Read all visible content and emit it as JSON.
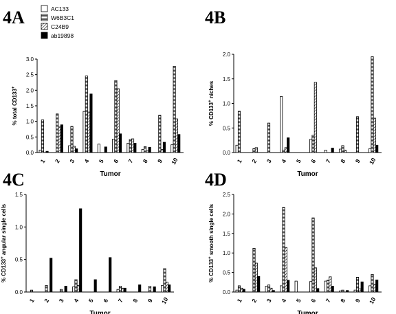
{
  "legend": [
    "AC133",
    "W6B3C1",
    "C24B9",
    "ab19898"
  ],
  "chart_data": [
    {
      "type": "bar",
      "panel": "4A",
      "ylabel": "% total CD133",
      "ylabel_sup": "+",
      "xlabel": "Tumor",
      "ylim": [
        0,
        3.0
      ],
      "ytick_labels": [
        "0.0",
        "0.5",
        "1.0",
        "1.5",
        "2.0",
        "2.5",
        "3.0"
      ],
      "categories": [
        "1",
        "2",
        "3",
        "4",
        "5",
        "6",
        "7",
        "8",
        "9",
        "10"
      ],
      "series": [
        {
          "name": "AC133",
          "values": [
            0.08,
            0.0,
            0.22,
            1.32,
            0.27,
            0.43,
            0.3,
            0.1,
            0.0,
            0.25
          ]
        },
        {
          "name": "W6B3C1",
          "values": [
            1.05,
            1.24,
            0.84,
            2.46,
            0.0,
            2.31,
            0.42,
            0.19,
            1.2,
            2.77
          ]
        },
        {
          "name": "C24B9",
          "values": [
            0.0,
            0.82,
            0.2,
            1.3,
            0.0,
            2.05,
            0.44,
            0.05,
            0.1,
            1.08
          ]
        },
        {
          "name": "ab19898",
          "values": [
            0.04,
            0.89,
            0.12,
            1.88,
            0.18,
            0.6,
            0.3,
            0.17,
            0.33,
            0.58
          ]
        }
      ]
    },
    {
      "type": "bar",
      "panel": "4B",
      "ylabel": "% CD133",
      "ylabel_sup": "+",
      "ylabel_after": " niches",
      "xlabel": "Tumor",
      "ylim": [
        0,
        2.0
      ],
      "ytick_labels": [
        "0.0",
        "0.5",
        "1.0",
        "1.5",
        "2.0"
      ],
      "categories": [
        "1",
        "2",
        "3",
        "4",
        "5",
        "6",
        "7",
        "8",
        "9",
        "10"
      ],
      "series": [
        {
          "name": "AC133",
          "values": [
            0.15,
            0.0,
            0.0,
            1.14,
            0.0,
            0.27,
            0.05,
            0.07,
            0.0,
            0.08
          ]
        },
        {
          "name": "W6B3C1",
          "values": [
            0.84,
            0.08,
            0.6,
            0.05,
            0.0,
            0.35,
            0.0,
            0.14,
            0.73,
            1.95
          ]
        },
        {
          "name": "C24B9",
          "values": [
            0.0,
            0.1,
            0.0,
            0.1,
            0.0,
            1.43,
            0.0,
            0.05,
            0.0,
            0.7
          ]
        },
        {
          "name": "ab19898",
          "values": [
            0.0,
            0.0,
            0.0,
            0.3,
            0.0,
            0.0,
            0.09,
            0.0,
            0.0,
            0.15
          ]
        }
      ]
    },
    {
      "type": "bar",
      "panel": "4C",
      "ylabel": "% CD133",
      "ylabel_sup": "+",
      "ylabel_after": " angular single cells",
      "xlabel": "Tumor",
      "ylim": [
        0,
        1.5
      ],
      "ytick_labels": [
        "0.0",
        "0.5",
        "1.0",
        "1.5"
      ],
      "categories": [
        "1",
        "2",
        "3",
        "4",
        "5",
        "6",
        "7",
        "8",
        "9",
        "10"
      ],
      "series": [
        {
          "name": "AC133",
          "values": [
            0.0,
            0.0,
            0.0,
            0.08,
            0.0,
            0.0,
            0.04,
            0.0,
            0.0,
            0.1
          ]
        },
        {
          "name": "W6B3C1",
          "values": [
            0.03,
            0.1,
            0.04,
            0.19,
            0.0,
            0.0,
            0.09,
            0.0,
            0.09,
            0.36
          ]
        },
        {
          "name": "C24B9",
          "values": [
            0.0,
            0.0,
            0.0,
            0.1,
            0.0,
            0.0,
            0.06,
            0.0,
            0.0,
            0.15
          ]
        },
        {
          "name": "ab19898",
          "values": [
            0.0,
            0.52,
            0.09,
            1.28,
            0.19,
            0.53,
            0.06,
            0.11,
            0.08,
            0.11
          ]
        }
      ]
    },
    {
      "type": "bar",
      "panel": "4D",
      "ylabel": "% CD133",
      "ylabel_sup": "+",
      "ylabel_after": " smooth single cells",
      "xlabel": "Tumor",
      "ylim": [
        0,
        2.5
      ],
      "ytick_labels": [
        "0.0",
        "0.5",
        "1.0",
        "1.5",
        "2.0",
        "2.5"
      ],
      "categories": [
        "1",
        "2",
        "3",
        "4",
        "5",
        "6",
        "7",
        "8",
        "9",
        "10"
      ],
      "series": [
        {
          "name": "AC133",
          "values": [
            0.05,
            0.0,
            0.15,
            0.16,
            0.28,
            0.27,
            0.28,
            0.03,
            0.05,
            0.16
          ]
        },
        {
          "name": "W6B3C1",
          "values": [
            0.16,
            1.12,
            0.18,
            2.17,
            0.0,
            1.9,
            0.3,
            0.05,
            0.38,
            0.45
          ]
        },
        {
          "name": "C24B9",
          "values": [
            0.1,
            0.74,
            0.1,
            1.14,
            0.0,
            0.62,
            0.39,
            0.0,
            0.08,
            0.2
          ]
        },
        {
          "name": "ab19898",
          "values": [
            0.07,
            0.4,
            0.04,
            0.3,
            0.0,
            0.09,
            0.15,
            0.04,
            0.26,
            0.31
          ]
        }
      ]
    }
  ]
}
